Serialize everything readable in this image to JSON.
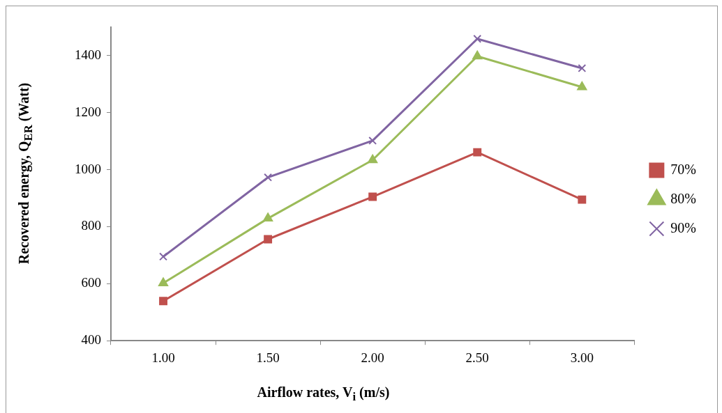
{
  "chart_data": {
    "type": "line",
    "xlabel": "Airflow rates, V$_{i}$ (m/s)",
    "ylabel": "Recovered  energy, Q$_{ER}$ (Watt)",
    "categories": [
      "1.00",
      "1.50",
      "2.00",
      "2.50",
      "3.00"
    ],
    "ylim": [
      400,
      1500
    ],
    "yticks": [
      400,
      600,
      800,
      1000,
      1200,
      1400
    ],
    "grid": false,
    "legend": "right",
    "series": [
      {
        "name": "70%",
        "color": "#c0504d",
        "marker": "square",
        "values": [
          539,
          756,
          905,
          1061,
          895
        ]
      },
      {
        "name": "80%",
        "color": "#9bbb59",
        "marker": "triangle",
        "values": [
          602,
          829,
          1034,
          1398,
          1290
        ]
      },
      {
        "name": "90%",
        "color": "#8064a2",
        "marker": "cross",
        "values": [
          695,
          973,
          1102,
          1459,
          1356
        ]
      }
    ]
  }
}
